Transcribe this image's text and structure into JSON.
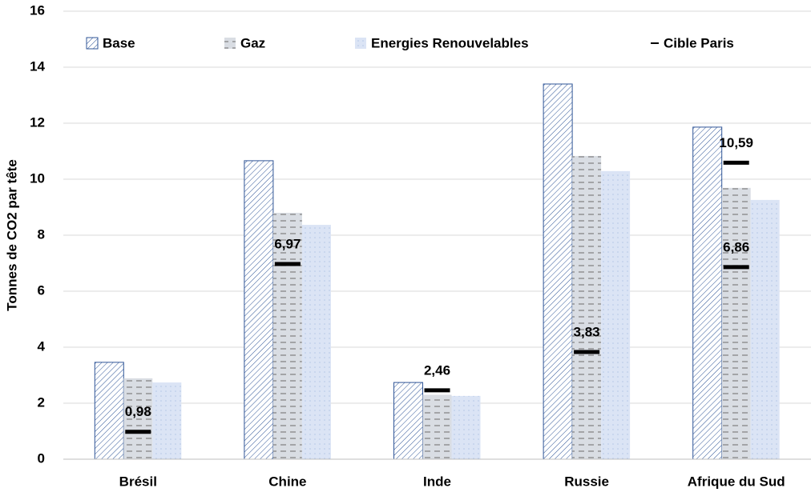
{
  "chart_data": {
    "type": "bar",
    "y_label": "Tonnes de CO2 par tête",
    "categories": [
      "Brésil",
      "Chine",
      "Inde",
      "Russie",
      "Afrique du Sud"
    ],
    "series": [
      {
        "name": "Base",
        "color": "#2f5597",
        "values": [
          3.46,
          10.66,
          2.74,
          13.4,
          11.86
        ]
      },
      {
        "name": "Gaz",
        "color": "#7f7f7f",
        "values": [
          2.89,
          8.8,
          2.3,
          10.83,
          9.69
        ]
      },
      {
        "name": "Energies Renouvelables",
        "color": "#b4c7e7",
        "values": [
          2.74,
          8.37,
          2.26,
          10.29,
          9.26
        ]
      }
    ],
    "target": {
      "name": "Cible Paris",
      "color": "#000000",
      "values": [
        [
          0.98
        ],
        [
          6.97
        ],
        [
          2.46
        ],
        [
          3.83
        ],
        [
          10.59,
          6.86
        ]
      ],
      "value_labels": [
        [
          "0,98"
        ],
        [
          "6,97"
        ],
        [
          "2,46"
        ],
        [
          "3,83"
        ],
        [
          "10,59",
          "6,86"
        ]
      ]
    },
    "ylim": [
      0,
      16
    ],
    "yticks": [
      0,
      2,
      4,
      6,
      8,
      10,
      12,
      14,
      16
    ],
    "grid": true
  }
}
